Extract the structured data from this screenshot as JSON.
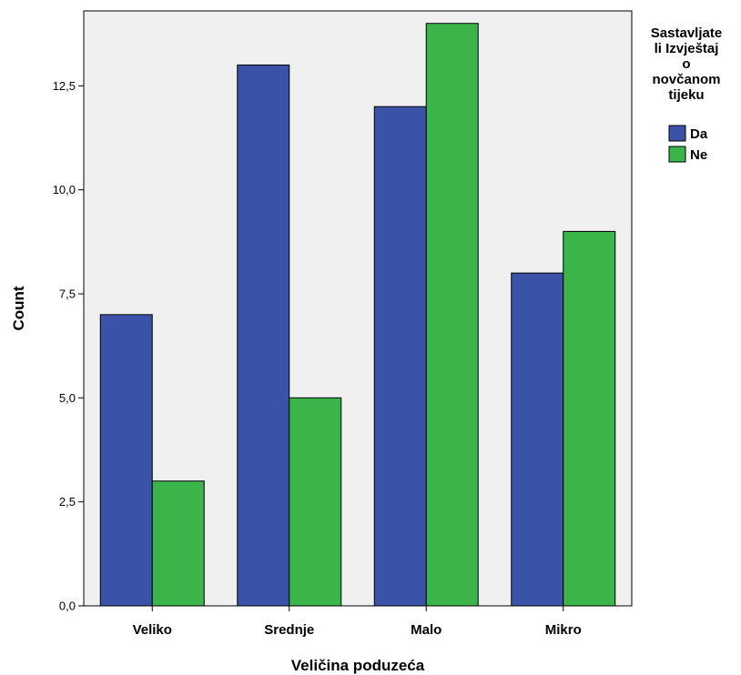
{
  "chart_data": {
    "type": "bar",
    "categories": [
      "Veliko",
      "Srednje",
      "Malo",
      "Mikro"
    ],
    "series": [
      {
        "name": "Da",
        "values": [
          7,
          13,
          12,
          8
        ],
        "color": "#3a53a8"
      },
      {
        "name": "Ne",
        "values": [
          3,
          5,
          14,
          9
        ],
        "color": "#3bb54a"
      }
    ],
    "xlabel": "Veličina poduzeća",
    "ylabel": "Count",
    "ylim": [
      0,
      14.3
    ],
    "yticks": [
      {
        "value": 0,
        "label": "0,0"
      },
      {
        "value": 2.5,
        "label": "2,5"
      },
      {
        "value": 5,
        "label": "5,0"
      },
      {
        "value": 7.5,
        "label": "7,5"
      },
      {
        "value": 10,
        "label": "10,0"
      },
      {
        "value": 12.5,
        "label": "12,5"
      }
    ],
    "legend": {
      "title_lines": [
        "Sastavljate",
        "li Izvještaj",
        "o",
        "novčanom",
        "tijeku"
      ],
      "placement": "right"
    },
    "plot_background": "#f0f0f0",
    "grid": false
  }
}
